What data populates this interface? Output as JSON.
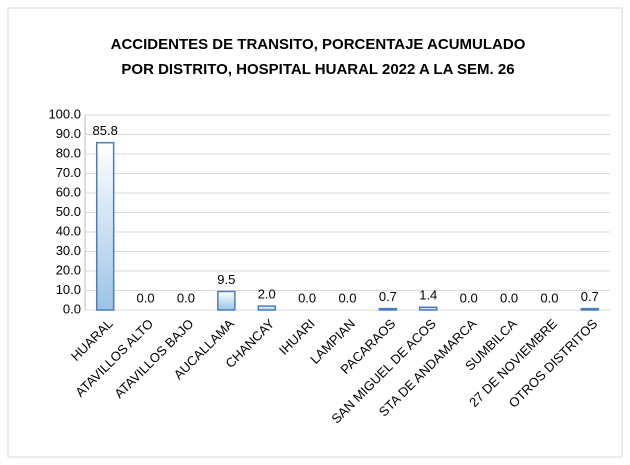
{
  "chart_data": {
    "type": "bar",
    "title": [
      "ACCIDENTES DE TRANSITO, PORCENTAJE ACUMULADO",
      "POR DISTRITO, HOSPITAL HUARAL 2022 A LA SEM. 26"
    ],
    "categories": [
      "HUARAL",
      "ATAVILLOS ALTO",
      "ATAVILLOS BAJO",
      "AUCALLAMA",
      "CHANCAY",
      "IHUARI",
      "LAMPIAN",
      "PACARAOS",
      "SAN MIGUEL DE ACOS",
      "STA DE ANDAMARCA",
      "SUMBILCA",
      "27 DE NOVIEMBRE",
      "OTROS DISTRITOS"
    ],
    "values": [
      85.8,
      0,
      0,
      9.5,
      2,
      0,
      0,
      0.7,
      1.4,
      0,
      0,
      0,
      0.7
    ],
    "value_labels": [
      "85.8",
      "0.0",
      "0.0",
      "9.5",
      "2.0",
      "0.0",
      "0.0",
      "0.7",
      "1.4",
      "0.0",
      "0.0",
      "0.0",
      "0.7"
    ],
    "color": "#9dc3e6",
    "ylim": [
      0,
      100
    ],
    "yticks": [
      {
        "value": 0,
        "label": "0.0"
      },
      {
        "value": 10,
        "label": "10.0"
      },
      {
        "value": 20,
        "label": "20.0"
      },
      {
        "value": 30,
        "label": "30.0"
      },
      {
        "value": 40,
        "label": "40.0"
      },
      {
        "value": 50,
        "label": "50.0"
      },
      {
        "value": 60,
        "label": "60.0"
      },
      {
        "value": 70,
        "label": "70.0"
      },
      {
        "value": 80,
        "label": "80.0"
      },
      {
        "value": 90,
        "label": "90.0"
      },
      {
        "value": 100,
        "label": "100.0"
      }
    ],
    "grid": true
  }
}
